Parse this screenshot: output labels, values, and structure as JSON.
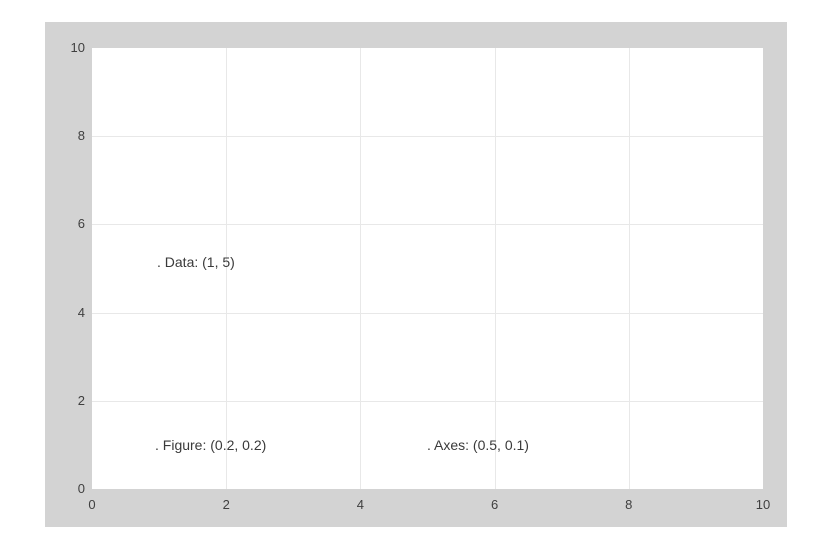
{
  "window": {
    "background": "#ffffff"
  },
  "figure": {
    "facecolor": "#d3d3d3",
    "axes_facecolor": "#ffffff",
    "grid_color": "#e8e8e8",
    "tick_label_color": "#3f3f3f",
    "annotation_color": "#3a3a3a"
  },
  "chart_data": {
    "type": "scatter",
    "title": "",
    "xlabel": "",
    "ylabel": "",
    "xlim": [
      0,
      10
    ],
    "ylim": [
      0,
      10
    ],
    "xtick_labels": [
      "0",
      "2",
      "4",
      "6",
      "8",
      "10"
    ],
    "xtick_values": [
      0,
      2,
      4,
      6,
      8,
      10
    ],
    "ytick_labels": [
      "0",
      "2",
      "4",
      "6",
      "8",
      "10"
    ],
    "ytick_values": [
      0,
      2,
      4,
      6,
      8,
      10
    ],
    "grid": "on",
    "legend": "none",
    "series": [],
    "annotations": [
      {
        "id": "data",
        "label": ". Data: (1, 5)",
        "coordinate_system": "data",
        "x": 1,
        "y": 5
      },
      {
        "id": "figure",
        "label": ". Figure: (0.2, 0.2)",
        "coordinate_system": "figure",
        "x": 0.2,
        "y": 0.2
      },
      {
        "id": "axes",
        "label": ". Axes: (0.5, 0.1)",
        "coordinate_system": "axes",
        "x": 0.5,
        "y": 0.1
      }
    ]
  }
}
